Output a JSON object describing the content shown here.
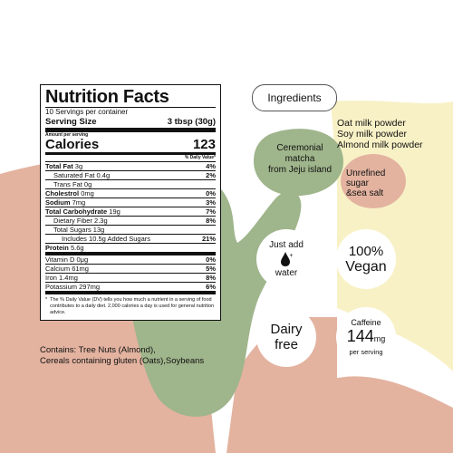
{
  "nutrition": {
    "title": "Nutrition Facts",
    "servings": "10 Servings per container",
    "serving_size_label": "Serving Size",
    "serving_size_value": "3 tbsp (30g)",
    "amount_per_serving": "Amount per serving",
    "calories_label": "Calories",
    "calories_value": "123",
    "dv_header": "% Daily Value*",
    "rows": [
      {
        "label": "Total Fat",
        "amount": "3g",
        "dv": "4%"
      },
      {
        "label": "Saturated Fat",
        "amount": "0.4g",
        "dv": "2%"
      },
      {
        "label": "Trans Fat",
        "amount": "0g",
        "dv": ""
      },
      {
        "label": "Cholestrol",
        "amount": "0mg",
        "dv": "0%"
      },
      {
        "label": "Sodium",
        "amount": "7mg",
        "dv": "3%"
      },
      {
        "label": "Total Carbohydrate",
        "amount": "19g",
        "dv": "7%"
      },
      {
        "label": "Dietary Fiber",
        "amount": "2.3g",
        "dv": "8%"
      },
      {
        "label": "Total Sugars",
        "amount": "13g",
        "dv": ""
      },
      {
        "label": "Includes 10.5g Added Sugars",
        "amount": "",
        "dv": "21%"
      },
      {
        "label": "Protein",
        "amount": "5.6g",
        "dv": ""
      },
      {
        "label": "Vitamin D",
        "amount": "0μg",
        "dv": "0%"
      },
      {
        "label": "Calcium",
        "amount": "61mg",
        "dv": "5%"
      },
      {
        "label": "Iron",
        "amount": "1.4mg",
        "dv": "8%"
      },
      {
        "label": "Potassium",
        "amount": "297mg",
        "dv": "6%"
      }
    ],
    "footnote_star": "*",
    "footnote": "The % Daily Value (DV) tells you how much a nutrient in a serving of food contributes to a daily diet. 2,000 calories a day is used for general nutrition advice."
  },
  "contains": {
    "line1": "Contains: Tree Nuts (Almond),",
    "line2": "Cereals containing gluten (Oats),Soybeans"
  },
  "ingredients": {
    "pill": "Ingredients",
    "milk": [
      "Oat milk powder",
      "Soy milk powder",
      "Almond milk powder"
    ],
    "matcha": [
      "Ceremonial",
      "matcha",
      "from Jeju island"
    ],
    "sugar": [
      "Unrefined",
      "sugar",
      "&sea salt"
    ]
  },
  "badges": {
    "water": {
      "line1": "Just add",
      "plus": "+",
      "line2": "water"
    },
    "vegan": {
      "line1": "100%",
      "line2": "Vegan"
    },
    "dairy": {
      "line1": "Dairy",
      "line2": "free"
    },
    "caffeine": {
      "line1": "Caffeine",
      "number": "144",
      "unit": "mg",
      "line3": "per serving"
    }
  },
  "colors": {
    "terracotta": "#e3b3a0",
    "matcha_green": "#9fb58b",
    "cream": "#f8f1c6",
    "dark": "#111111"
  }
}
